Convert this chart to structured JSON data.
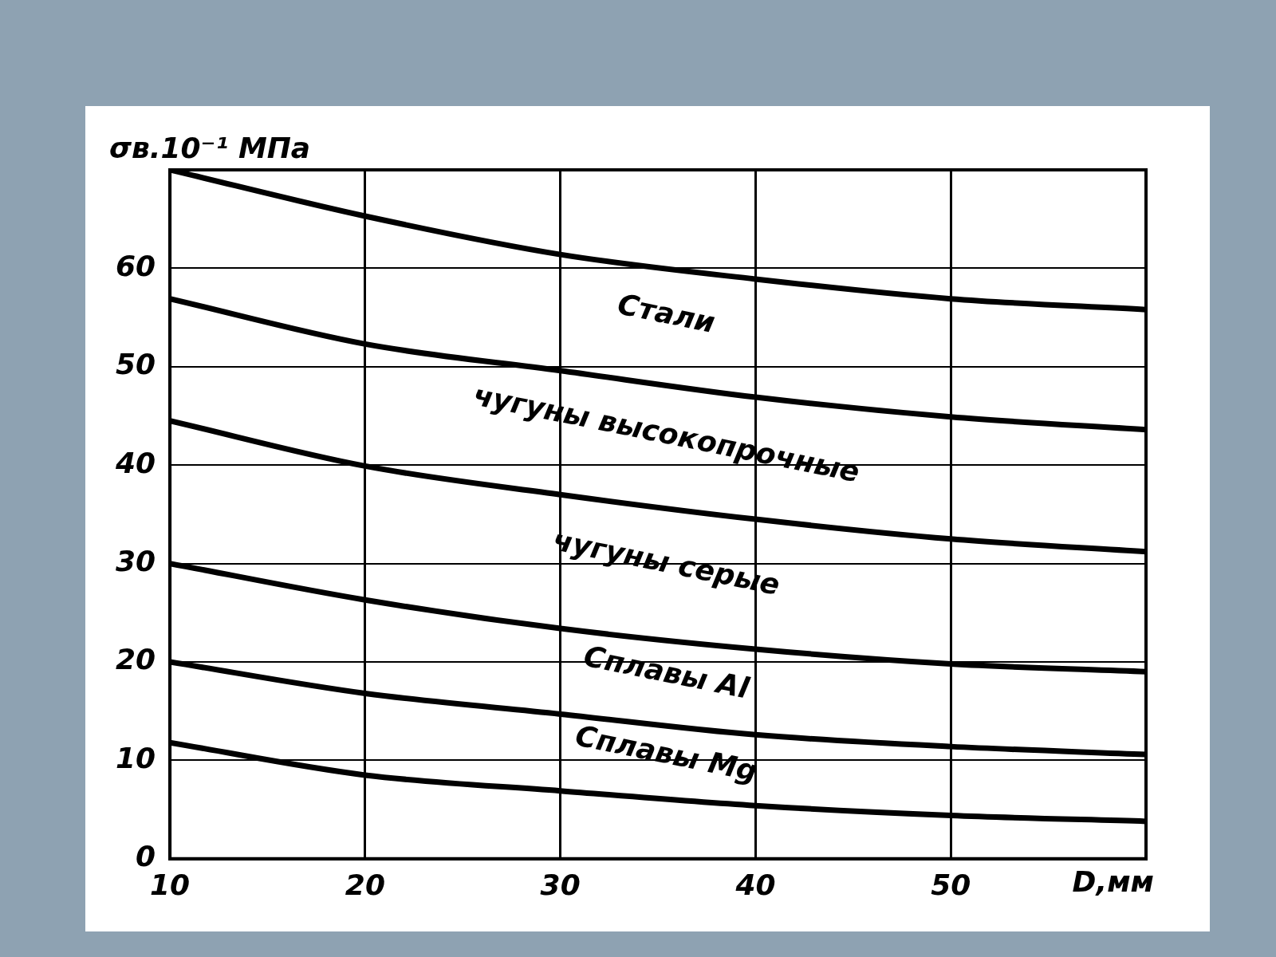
{
  "chart_data": {
    "type": "line",
    "xlabel": "D,мм",
    "ylabel": "σв.10⁻¹ МПа",
    "x": [
      10,
      20,
      30,
      40,
      50,
      60
    ],
    "series": [
      {
        "color": "#000000",
        "values": [
          70,
          65.3,
          61.4,
          58.9,
          56.9,
          55.8
        ]
      },
      {
        "color": "#000000",
        "values": [
          56.9,
          52.3,
          49.6,
          46.9,
          44.9,
          43.6
        ]
      },
      {
        "color": "#000000",
        "values": [
          44.5,
          39.9,
          37.0,
          34.5,
          32.5,
          31.2
        ]
      },
      {
        "color": "#000000",
        "values": [
          30,
          26.3,
          23.4,
          21.3,
          19.8,
          19.0
        ]
      },
      {
        "color": "#000000",
        "values": [
          20,
          16.8,
          14.7,
          12.6,
          11.4,
          10.6
        ]
      },
      {
        "color": "#000000",
        "values": [
          11.8,
          8.5,
          6.9,
          5.4,
          4.4,
          3.8
        ]
      }
    ],
    "annotations": [
      "Стали",
      "чугуны высокопрочные",
      "чугуны серые",
      "Сплавы Al",
      "Сплавы Mg"
    ],
    "xlim": [
      10,
      60
    ],
    "xticks": [
      10,
      20,
      30,
      40,
      50,
      {
        "value": 60,
        "label": null
      }
    ],
    "ylim": [
      0,
      70
    ],
    "yticks": [
      0,
      10,
      20,
      30,
      40,
      50,
      60,
      {
        "value": 70,
        "label": null
      }
    ],
    "grid": true,
    "legend": false,
    "marker": "none",
    "line_style": "solid"
  }
}
